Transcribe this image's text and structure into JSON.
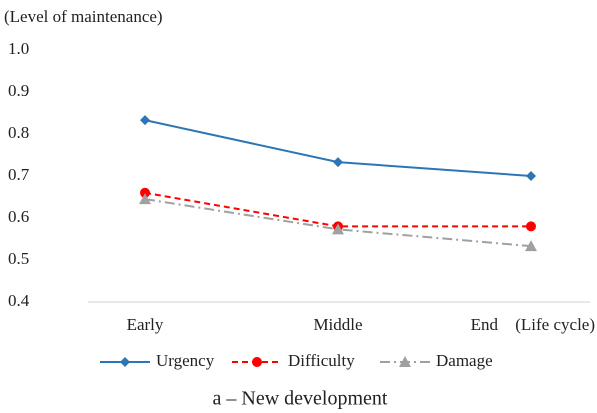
{
  "chart_data": {
    "type": "line",
    "y_axis_label": "(Level of maintenance)",
    "x_axis_label": "(Life cycle)",
    "caption": "a – New development",
    "categories": [
      "Early",
      "Middle",
      "End"
    ],
    "series": [
      {
        "name": "Urgency",
        "color": "#2e75b6",
        "dash": "none",
        "marker": "diamond",
        "values": [
          0.833,
          0.733,
          0.7
        ]
      },
      {
        "name": "Difficulty",
        "color": "#ff0000",
        "dash": "6 4",
        "marker": "circle",
        "values": [
          0.66,
          0.58,
          0.58
        ]
      },
      {
        "name": "Damage",
        "color": "#a0a0a0",
        "dash": "10 4 2 4",
        "marker": "triangle",
        "values": [
          0.645,
          0.573,
          0.533
        ]
      }
    ],
    "ylim": [
      0.4,
      1.0
    ],
    "yticks": [
      0.4,
      0.5,
      0.6,
      0.7,
      0.8,
      0.9,
      {
        "value": 1.0,
        "label": "1.0"
      }
    ],
    "grid": false
  }
}
